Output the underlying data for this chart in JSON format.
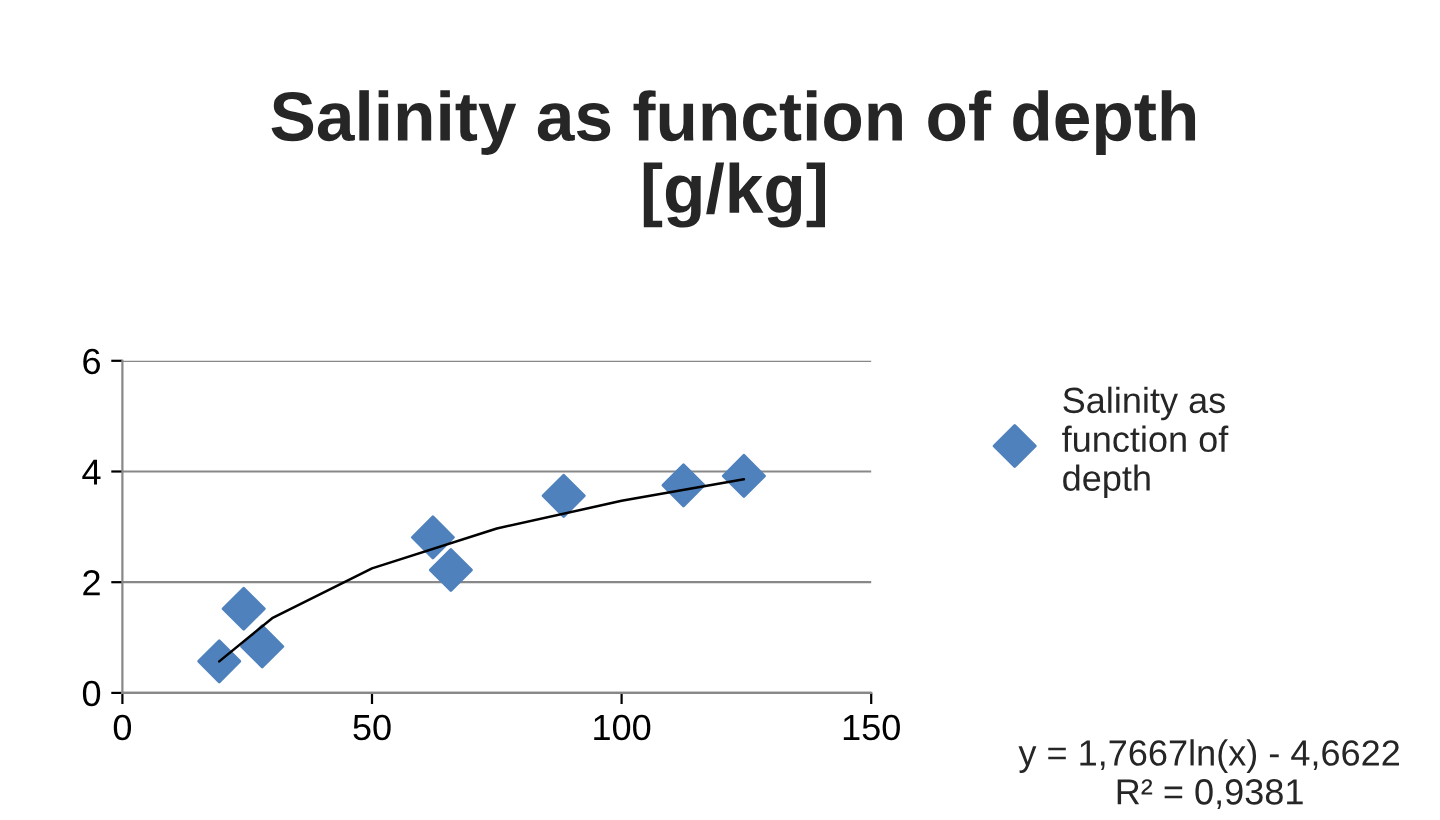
{
  "chart_data": {
    "type": "scatter",
    "title": "Salinity as function of depth\n[g/kg]",
    "series": [
      {
        "name": "Salinity as\nfunction of\ndepth",
        "color": "#4f81bd",
        "marker": "diamond",
        "x": [
          19.4,
          24.3,
          28,
          62.2,
          65.8,
          88.4,
          112.4,
          124.5
        ],
        "values": [
          0.57,
          1.52,
          0.84,
          2.81,
          2.22,
          3.56,
          3.75,
          3.92
        ]
      },
      {
        "type": "line",
        "color": "#000000",
        "marker": "none",
        "x": [
          19.4,
          30,
          50,
          75,
          100,
          124.5
        ],
        "values": [
          0.57,
          1.35,
          2.25,
          2.97,
          3.47,
          3.86
        ]
      }
    ],
    "xlim": [
      0,
      150
    ],
    "xticks": [
      0,
      50,
      100,
      150
    ],
    "ylim": [
      0,
      6
    ],
    "yticks": [
      0,
      2,
      4,
      6
    ],
    "grid": "y",
    "legend": "right",
    "annotations": [
      "y = 1,7667ln(x) - 4,6622\nR² = 0,9381"
    ]
  }
}
